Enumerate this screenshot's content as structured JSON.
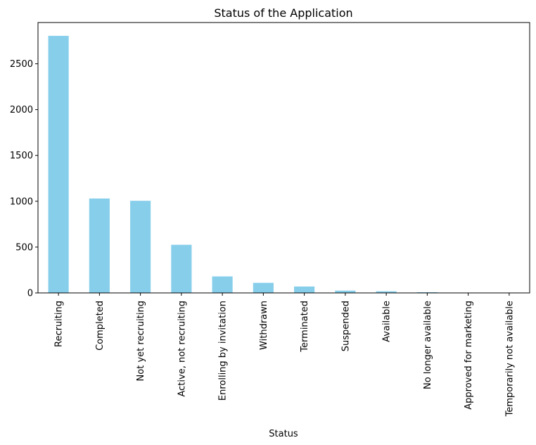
{
  "chart_data": {
    "type": "bar",
    "title": "Status of the Application",
    "xlabel": "Status",
    "ylabel": "",
    "categories": [
      "Recruiting",
      "Completed",
      "Not yet recruiting",
      "Active, not recruiting",
      "Enrolling by invitation",
      "Withdrawn",
      "Terminated",
      "Suspended",
      "Available",
      "No longer available",
      "Approved for marketing",
      "Temporarily not available"
    ],
    "values": [
      2805,
      1030,
      1005,
      525,
      180,
      110,
      70,
      25,
      18,
      8,
      2,
      2
    ],
    "ylim": [
      0,
      2950
    ],
    "yticks": [
      0,
      500,
      1000,
      1500,
      2000,
      2500
    ],
    "grid": false,
    "colors": {
      "bar": "#87ceeb",
      "axis": "#000000"
    }
  }
}
